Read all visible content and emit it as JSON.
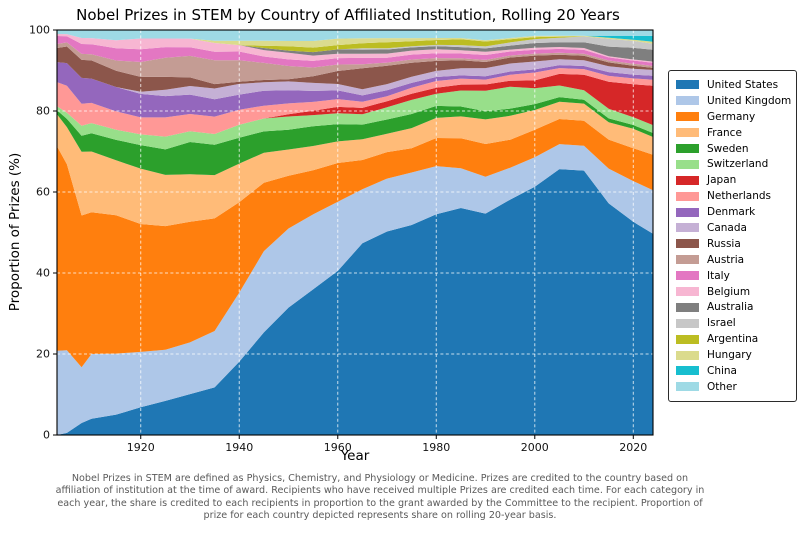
{
  "title": "Nobel Prizes in STEM by Country of Affiliated Institution, Rolling 20 Years",
  "axes": {
    "x_label": "Year",
    "y_label": "Proportion of Prizes (%)",
    "x_ticks": [
      1920,
      1940,
      1960,
      1980,
      2000,
      2020
    ],
    "y_ticks": [
      0,
      20,
      40,
      60,
      80,
      100
    ],
    "x_range": [
      1903,
      2024
    ],
    "y_range": [
      0,
      100
    ]
  },
  "footnote": "Nobel Prizes in STEM are defined as Physics, Chemistry, and Physiology or Medicine. Prizes are credited to the country based on affiliation of institution at the time of award. Recipients who have received multiple Prizes are credited each time. For each category in each year, the share is credited to each recipients in proportion to the grant awarded by the Committee to the recipient. Proportion of prize for each country depicted represents share on rolling 20-year basis.",
  "chart_data": {
    "type": "area",
    "stacked": true,
    "normalized": "percent",
    "title": "Nobel Prizes in STEM by Country of Affiliated Institution, Rolling 20 Years",
    "xlabel": "Year",
    "ylabel": "Proportion of Prizes (%)",
    "ylim": [
      0,
      100
    ],
    "grid": true,
    "legend_position": "right",
    "x": [
      1903,
      1905,
      1908,
      1910,
      1915,
      1920,
      1925,
      1930,
      1935,
      1940,
      1945,
      1950,
      1955,
      1960,
      1965,
      1970,
      1975,
      1980,
      1985,
      1990,
      1995,
      2000,
      2005,
      2010,
      2015,
      2020,
      2024
    ],
    "series": [
      {
        "name": "United States",
        "color": "#1f77b4",
        "values": [
          0,
          0.5,
          3,
          4,
          5,
          6.5,
          8,
          9.5,
          11,
          17,
          24,
          29,
          33,
          38,
          46,
          50,
          52,
          55,
          57,
          54,
          59,
          63,
          69,
          69,
          60,
          55,
          51
        ]
      },
      {
        "name": "United Kingdom",
        "color": "#aec7e8",
        "values": [
          21,
          20,
          14,
          16,
          15,
          13,
          12,
          12,
          13,
          16,
          19,
          18,
          17,
          16,
          13,
          13,
          13,
          12,
          10,
          9,
          8,
          7.5,
          6.5,
          6.5,
          9,
          10.5,
          11
        ]
      },
      {
        "name": "Germany",
        "color": "#ff7f0e",
        "values": [
          51,
          45,
          38,
          35,
          34,
          30,
          29,
          28,
          26,
          21,
          16,
          12,
          10,
          9,
          7,
          6.5,
          6,
          7,
          7.5,
          8,
          7,
          7,
          6.5,
          6.5,
          7.5,
          8.5,
          9
        ]
      },
      {
        "name": "France",
        "color": "#ffbb78",
        "values": [
          8,
          9,
          16,
          15,
          13.5,
          13,
          12,
          11,
          10,
          9,
          7,
          6,
          5.5,
          5,
          5,
          4.5,
          5,
          5,
          5.5,
          6,
          6,
          5,
          4.5,
          4.5,
          4.5,
          5,
          4.5
        ]
      },
      {
        "name": "Sweden",
        "color": "#2ca02c",
        "values": [
          1,
          2,
          4,
          4.5,
          5,
          5.5,
          6,
          7.5,
          7,
          6,
          5,
          4.5,
          4.5,
          4,
          3.5,
          3.5,
          3.5,
          3,
          2.5,
          2,
          1.8,
          1.5,
          1.2,
          1,
          1,
          1,
          1
        ]
      },
      {
        "name": "Switzerland",
        "color": "#98df8a",
        "values": [
          1,
          1.5,
          2.5,
          2.5,
          2.5,
          2.5,
          3,
          2.5,
          2.5,
          3,
          3,
          3,
          2.5,
          2.5,
          2.5,
          3,
          3.5,
          3,
          4,
          5,
          5.5,
          4,
          3,
          2.5,
          2.5,
          2,
          2
        ]
      },
      {
        "name": "Japan",
        "color": "#d62728",
        "values": [
          0,
          0,
          0,
          0,
          0,
          0,
          0,
          0,
          0,
          0,
          0,
          0.5,
          1,
          1.5,
          1.5,
          1.5,
          1.5,
          1.5,
          1.5,
          1.5,
          1.5,
          2,
          3,
          4,
          7,
          8.5,
          10
        ]
      },
      {
        "name": "Netherlands",
        "color": "#ff9896",
        "values": [
          6,
          6.5,
          5.5,
          5,
          4.5,
          4,
          4.5,
          4,
          4,
          3.5,
          3,
          2.5,
          2,
          1.8,
          1.5,
          1.2,
          1.5,
          1.7,
          1.5,
          1.2,
          1.5,
          2,
          1.5,
          1.5,
          1.5,
          1.5,
          1.5
        ]
      },
      {
        "name": "Denmark",
        "color": "#9467bd",
        "values": [
          5,
          5.5,
          6.5,
          6,
          6,
          5.5,
          5,
          4.5,
          4,
          3.5,
          3.5,
          3,
          2.5,
          2,
          1.5,
          1.5,
          1.2,
          1,
          0.8,
          0.8,
          0.8,
          0.8,
          0.8,
          0.8,
          1,
          1,
          1
        ]
      },
      {
        "name": "Canada",
        "color": "#c5b0d5",
        "values": [
          0,
          0,
          0,
          0,
          0,
          0.5,
          1.5,
          2,
          2.5,
          2.5,
          2,
          2,
          1.8,
          1.5,
          1.5,
          1.5,
          1.5,
          1.5,
          1.8,
          2,
          2,
          2,
          1.5,
          1.5,
          1.5,
          1.5,
          1.5
        ]
      },
      {
        "name": "Russia",
        "color": "#8c564b",
        "values": [
          3.5,
          4,
          4.5,
          4.5,
          4,
          3.5,
          3,
          2,
          1,
          0.5,
          0.5,
          0.5,
          1.5,
          3,
          5,
          4.5,
          3.5,
          2.5,
          2,
          1.5,
          1.5,
          1.5,
          1.2,
          1.2,
          1,
          0.8,
          0.5
        ]
      },
      {
        "name": "Austria",
        "color": "#c49c94",
        "values": [
          1,
          1,
          1.5,
          1.5,
          2.5,
          3.5,
          4.5,
          5,
          5.5,
          5,
          4,
          3,
          2,
          1.5,
          1,
          0.8,
          0.8,
          0.7,
          0.5,
          0.5,
          0.5,
          0.5,
          0.5,
          0.5,
          0.5,
          0.5,
          0.5
        ]
      },
      {
        "name": "Italy",
        "color": "#e377c2",
        "values": [
          2,
          1.5,
          2.5,
          2.5,
          3,
          3,
          2.5,
          2,
          2,
          2,
          1.5,
          1.5,
          1.5,
          1.5,
          1.5,
          1.2,
          1.2,
          1.2,
          1.2,
          1.2,
          1,
          1,
          1,
          1,
          0.8,
          0.8,
          0.8
        ]
      },
      {
        "name": "Belgium",
        "color": "#f7b6d2",
        "values": [
          0.5,
          0.5,
          1.5,
          1.5,
          2,
          2.5,
          2,
          2,
          2,
          1.5,
          1.5,
          1.5,
          1.2,
          1,
          1,
          1,
          1,
          1,
          0.8,
          0.8,
          0.5,
          0.5,
          0.5,
          0.5,
          0.3,
          0.3,
          0.3
        ]
      },
      {
        "name": "Australia",
        "color": "#7f7f7f",
        "values": [
          0,
          0,
          0,
          0,
          0,
          0,
          0,
          0,
          0,
          0,
          0.5,
          0.5,
          0.8,
          1,
          1,
          1,
          0.8,
          0.8,
          0.8,
          0.8,
          1,
          1.2,
          1.2,
          1.5,
          2.5,
          3,
          3
        ]
      },
      {
        "name": "Israel",
        "color": "#c7c7c7",
        "values": [
          0,
          0,
          0,
          0,
          0,
          0,
          0,
          0,
          0,
          0,
          0,
          0,
          0,
          0,
          0.3,
          0.3,
          0.3,
          0.3,
          0.5,
          0.5,
          0.8,
          1,
          1.2,
          1.5,
          2,
          1.8,
          1.5
        ]
      },
      {
        "name": "Argentina",
        "color": "#bcbd22",
        "values": [
          0,
          0,
          0,
          0,
          0,
          0,
          0,
          0,
          0,
          0,
          0.5,
          1,
          1,
          1,
          1.2,
          1.5,
          1.2,
          1.2,
          1.5,
          1.2,
          0.8,
          0.5,
          0.3,
          0,
          0,
          0,
          0
        ]
      },
      {
        "name": "Hungary",
        "color": "#dbdb8d",
        "values": [
          0,
          0,
          0,
          0,
          0,
          0,
          0,
          0,
          0.5,
          1,
          1.2,
          1.2,
          1.5,
          1.5,
          1.2,
          1,
          0.8,
          0.5,
          0.3,
          0.3,
          0.3,
          0.3,
          0.2,
          0.2,
          0.3,
          0.3,
          0.5
        ]
      },
      {
        "name": "China",
        "color": "#17becf",
        "values": [
          0,
          0,
          0,
          0,
          0,
          0,
          0,
          0,
          0,
          0,
          0,
          0,
          0,
          0,
          0,
          0,
          0,
          0,
          0,
          0,
          0,
          0,
          0,
          0,
          0.5,
          1,
          1.5
        ]
      },
      {
        "name": "Other",
        "color": "#9edae5",
        "values": [
          1,
          1,
          2,
          2,
          2.5,
          2,
          2,
          2,
          2.5,
          2.5,
          2.5,
          2.5,
          2.5,
          2,
          2,
          2,
          2,
          2,
          2,
          2.5,
          2,
          1.5,
          1.5,
          1.5,
          1.5,
          1.5,
          1.5
        ]
      }
    ]
  }
}
